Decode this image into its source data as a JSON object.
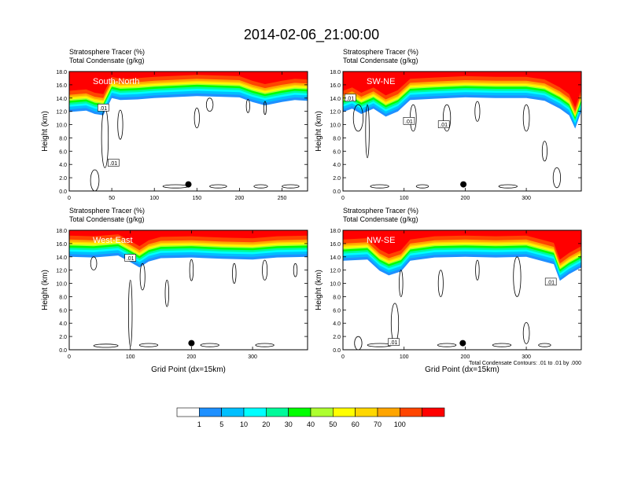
{
  "title": "2014-02-06_21:00:00",
  "panel_title_lines": [
    "Stratosphere Tracer   (%)",
    "Total Condensate   (g/kg)"
  ],
  "ylabel": "Height (km)",
  "xlabel": "Grid Point (dx=15km)",
  "footnote": "Total Condensate Contours: .01 to .01 by .000",
  "contour_label": ".01",
  "colors": [
    "#ffffff",
    "#1e90ff",
    "#00bfff",
    "#00ffff",
    "#00fa9a",
    "#00ff00",
    "#adff2f",
    "#ffff00",
    "#ffd700",
    "#ffa500",
    "#ff4500",
    "#ff0000"
  ],
  "colorbar": {
    "labels": [
      "1",
      "5",
      "10",
      "20",
      "30",
      "40",
      "50",
      "60",
      "70",
      "100"
    ]
  },
  "chart_data": [
    {
      "type": "heatmap",
      "region_label": "South-North",
      "xlim": [
        0,
        280
      ],
      "xticks": [
        0,
        50,
        100,
        150,
        200,
        250
      ],
      "xtick_labels": [
        "0",
        "50",
        "100",
        "150",
        "200",
        "250"
      ],
      "ylim": [
        0,
        18
      ],
      "yticks": [
        0,
        2,
        4,
        6,
        8,
        10,
        12,
        14,
        16,
        18
      ],
      "ytick_labels": [
        "0.0",
        "2.0",
        "4.0",
        "6.0",
        "8.0",
        "10.0",
        "12.0",
        "14.0",
        "16.0",
        "18.0"
      ],
      "marker": {
        "x": 140,
        "y": 1.0
      },
      "tracer_profile": [
        [
          0,
          12.5
        ],
        [
          20,
          12.7
        ],
        [
          30,
          12.2
        ],
        [
          40,
          12.0
        ],
        [
          50,
          14.6
        ],
        [
          60,
          14.3
        ],
        [
          80,
          14.4
        ],
        [
          100,
          14.6
        ],
        [
          150,
          14.9
        ],
        [
          200,
          14.7
        ],
        [
          215,
          14.0
        ],
        [
          230,
          13.5
        ],
        [
          250,
          14.0
        ],
        [
          265,
          14.3
        ],
        [
          280,
          14.2
        ]
      ],
      "contour_labels": [
        {
          "x": 40,
          "y": 12.5
        },
        {
          "x": 52,
          "y": 4.2
        }
      ]
    },
    {
      "type": "heatmap",
      "region_label": "SW-NE",
      "xlim": [
        0,
        390
      ],
      "xticks": [
        0,
        100,
        200,
        300
      ],
      "xtick_labels": [
        "0",
        "100",
        "200",
        "300"
      ],
      "ylim": [
        0,
        18
      ],
      "yticks": [
        0,
        2,
        4,
        6,
        8,
        10,
        12,
        14,
        16,
        18
      ],
      "ytick_labels": [
        "0.0",
        "2.0",
        "4.0",
        "6.0",
        "8.0",
        "10.0",
        "12.0",
        "14.0",
        "16.0",
        "18.0"
      ],
      "marker": {
        "x": 197,
        "y": 1.0
      },
      "tracer_profile": [
        [
          0,
          12.5
        ],
        [
          15,
          13.0
        ],
        [
          30,
          12.2
        ],
        [
          50,
          13.0
        ],
        [
          70,
          11.8
        ],
        [
          90,
          12.6
        ],
        [
          110,
          14.3
        ],
        [
          150,
          14.5
        ],
        [
          200,
          14.7
        ],
        [
          250,
          14.6
        ],
        [
          300,
          14.6
        ],
        [
          330,
          14.2
        ],
        [
          355,
          13.0
        ],
        [
          370,
          12.0
        ],
        [
          380,
          10.0
        ],
        [
          390,
          12.6
        ]
      ],
      "contour_labels": [
        {
          "x": 12,
          "y": 14.0
        },
        {
          "x": 108,
          "y": 10.5
        },
        {
          "x": 165,
          "y": 10.0
        }
      ]
    },
    {
      "type": "heatmap",
      "region_label": "West-East",
      "xlim": [
        0,
        390
      ],
      "xticks": [
        0,
        100,
        200,
        300
      ],
      "xtick_labels": [
        "0",
        "100",
        "200",
        "300"
      ],
      "ylim": [
        0,
        18
      ],
      "yticks": [
        0,
        2,
        4,
        6,
        8,
        10,
        12,
        14,
        16,
        18
      ],
      "ytick_labels": [
        "0.0",
        "2.0",
        "4.0",
        "6.0",
        "8.0",
        "10.0",
        "12.0",
        "14.0",
        "16.0",
        "18.0"
      ],
      "marker": {
        "x": 200,
        "y": 1.0
      },
      "tracer_profile": [
        [
          0,
          14.6
        ],
        [
          40,
          14.5
        ],
        [
          80,
          14.8
        ],
        [
          100,
          13.8
        ],
        [
          115,
          13.0
        ],
        [
          130,
          13.9
        ],
        [
          150,
          14.4
        ],
        [
          200,
          14.5
        ],
        [
          250,
          14.3
        ],
        [
          300,
          14.2
        ],
        [
          340,
          14.5
        ],
        [
          390,
          14.6
        ]
      ],
      "contour_labels": [
        {
          "x": 100,
          "y": 13.8
        }
      ]
    },
    {
      "type": "heatmap",
      "region_label": "NW-SE",
      "xlim": [
        0,
        390
      ],
      "xticks": [
        0,
        100,
        200,
        300
      ],
      "xtick_labels": [
        "0",
        "100",
        "200",
        "300"
      ],
      "ylim": [
        0,
        18
      ],
      "yticks": [
        0,
        2,
        4,
        6,
        8,
        10,
        12,
        14,
        16,
        18
      ],
      "ytick_labels": [
        "0.0",
        "2.0",
        "4.0",
        "6.0",
        "8.0",
        "10.0",
        "12.0",
        "14.0",
        "16.0",
        "18.0"
      ],
      "marker": {
        "x": 196,
        "y": 1.0
      },
      "tracer_profile": [
        [
          0,
          14.0
        ],
        [
          40,
          14.2
        ],
        [
          60,
          12.5
        ],
        [
          75,
          11.8
        ],
        [
          95,
          12.4
        ],
        [
          110,
          14.0
        ],
        [
          150,
          14.5
        ],
        [
          200,
          14.6
        ],
        [
          250,
          14.5
        ],
        [
          300,
          14.6
        ],
        [
          345,
          13.5
        ],
        [
          355,
          11.0
        ],
        [
          370,
          12.0
        ],
        [
          390,
          13.0
        ]
      ],
      "contour_labels": [
        {
          "x": 340,
          "y": 10.2
        },
        {
          "x": 83,
          "y": 1.1
        }
      ]
    }
  ]
}
